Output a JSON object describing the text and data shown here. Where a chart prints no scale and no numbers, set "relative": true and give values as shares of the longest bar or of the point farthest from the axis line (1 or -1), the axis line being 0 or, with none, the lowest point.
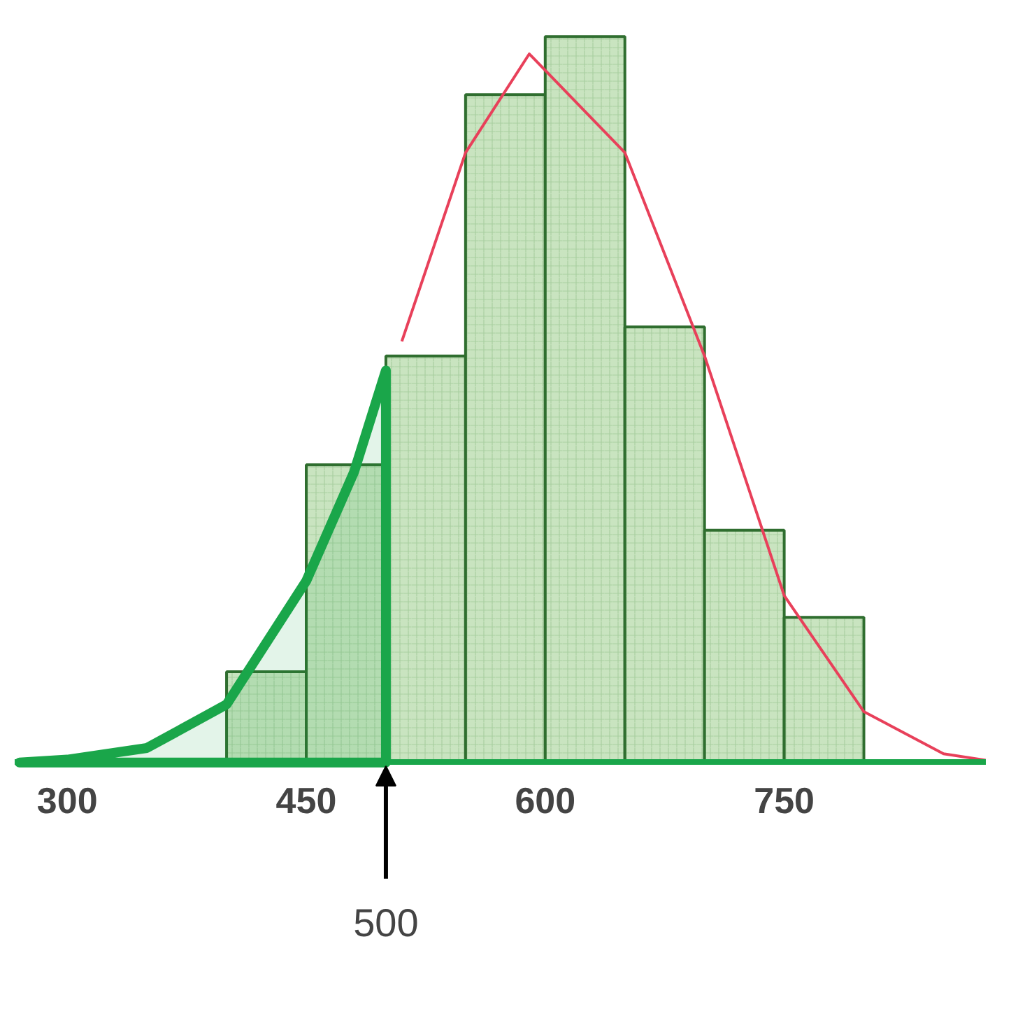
{
  "chart_data": {
    "type": "histogram",
    "relative": true,
    "bins": [
      400,
      450,
      500,
      550,
      600,
      650,
      700,
      750,
      800
    ],
    "values": [
      0.125,
      0.41,
      0.56,
      0.92,
      1,
      0.6,
      0.32,
      0.2
    ],
    "color": "#c9e4c0",
    "series": [
      {
        "type": "line",
        "color": "#e8405a",
        "x": [
          510,
          550,
          590,
          650,
          700,
          750,
          800,
          850,
          877
        ],
        "values": [
          0.58,
          0.84,
          0.976,
          0.84,
          0.56,
          0.23,
          0.07,
          0.012,
          0.003
        ]
      },
      {
        "type": "area",
        "color": "#1aa64a",
        "x": [
          270,
          300,
          350,
          400,
          450,
          480,
          500
        ],
        "values": [
          0.0,
          0.004,
          0.02,
          0.08,
          0.25,
          0.4,
          0.54
        ]
      }
    ],
    "xlim": [
      267,
      877
    ],
    "xticks": [
      300,
      450,
      600,
      750
    ],
    "grid": false,
    "annotations": [
      {
        "text": "500",
        "x": 500,
        "y": 0
      }
    ]
  }
}
